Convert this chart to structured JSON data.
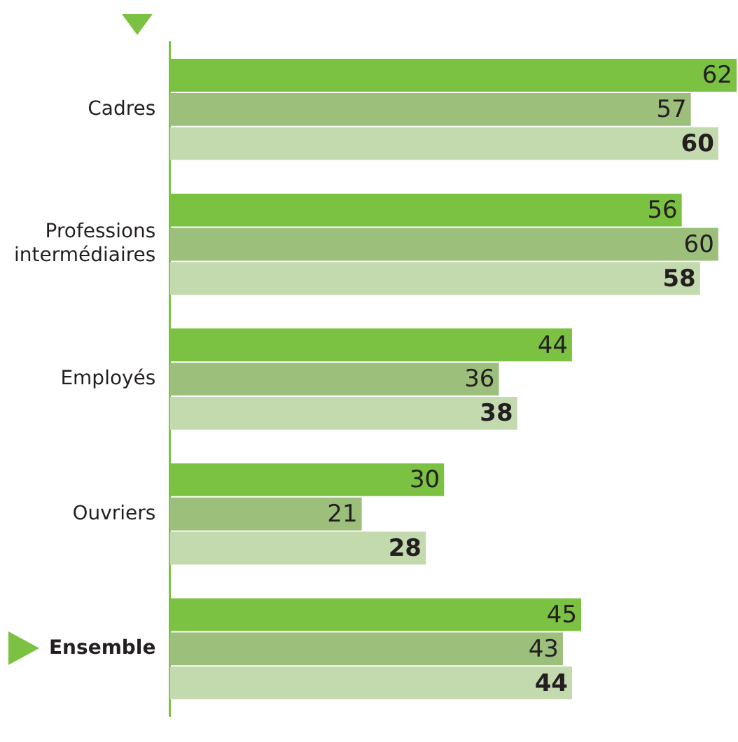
{
  "chart_data": {
    "type": "bar",
    "orientation": "horizontal",
    "categories": [
      "Cadres",
      "Professions intermédiaires",
      "Employés",
      "Ouvriers",
      "Ensemble"
    ],
    "series": [
      {
        "color": "#7bc142",
        "values": [
          62,
          56,
          44,
          30,
          45
        ]
      },
      {
        "color": "#9dbf7c",
        "values": [
          57,
          60,
          36,
          21,
          43
        ]
      },
      {
        "color": "#c3d9ae",
        "values": [
          60,
          58,
          38,
          28,
          44
        ]
      }
    ],
    "data_labels": true,
    "legend": false
  }
}
